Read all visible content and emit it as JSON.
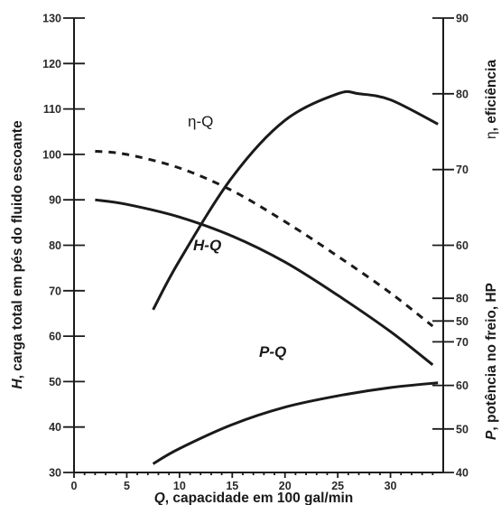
{
  "chart_data": {
    "type": "line",
    "x_axis": {
      "label_var": "Q",
      "label_rest": ", capacidade em 100 gal/min",
      "range": [
        0,
        35
      ],
      "ticks": [
        0,
        5,
        10,
        15,
        20,
        25,
        30
      ]
    },
    "left_axis": {
      "label_var": "H",
      "label_rest": ", carga total em pés do fluido escoante",
      "range": [
        30,
        130
      ],
      "ticks": [
        30,
        40,
        50,
        60,
        70,
        80,
        90,
        100,
        110,
        120,
        130
      ]
    },
    "right_axis_efficiency": {
      "label_var": "η",
      "label_rest": ", eficiência",
      "range": [
        30,
        90
      ],
      "ticks": [
        50,
        60,
        70,
        80,
        90
      ]
    },
    "right_axis_power": {
      "label_var": "P",
      "label_rest": ", potência no freio, HP",
      "range": [
        40,
        90
      ],
      "ticks": [
        40,
        50,
        60,
        70,
        80
      ]
    },
    "series": [
      {
        "name": "H-Q",
        "axis": "left",
        "style": "solid",
        "x": [
          2,
          5,
          10,
          15,
          20,
          25,
          30,
          34
        ],
        "y": [
          90,
          89,
          86.2,
          82,
          76.3,
          69,
          61,
          53.7
        ]
      },
      {
        "name": "H-Q (dashed)",
        "axis": "left",
        "style": "dashed",
        "x": [
          2,
          5,
          10,
          15,
          20,
          25,
          30,
          34
        ],
        "y": [
          100.7,
          100,
          97,
          92,
          85.2,
          77.6,
          69.5,
          62.2
        ]
      },
      {
        "name": "η-Q",
        "axis": "right_efficiency",
        "style": "solid",
        "x": [
          7.5,
          10,
          15,
          20,
          25,
          27,
          30,
          34.5
        ],
        "y": [
          51.5,
          58,
          69,
          76.5,
          80,
          80,
          79.2,
          76
        ]
      },
      {
        "name": "P-Q",
        "axis": "right_power",
        "style": "solid",
        "x": [
          7.5,
          10,
          15,
          20,
          25,
          30,
          34.5
        ],
        "y": [
          42,
          45.5,
          51,
          55,
          57.6,
          59.5,
          60.6
        ]
      }
    ],
    "grid": false
  }
}
